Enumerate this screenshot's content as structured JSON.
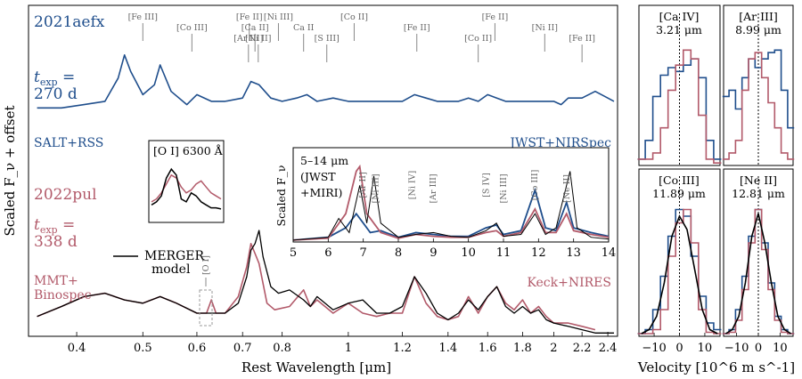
{
  "chart_data": [
    {
      "type": "line",
      "panel": "main-spectrum",
      "xlabel": "Rest Wavelength [μm]",
      "ylabel": "Scaled F_ν + offset",
      "xscale": "log",
      "xlim": [
        0.34,
        2.48
      ],
      "ylim": [
        0,
        1
      ],
      "xticks": [
        0.4,
        0.5,
        0.6,
        0.7,
        0.8,
        1.0,
        1.2,
        1.4,
        1.6,
        1.8,
        2.0,
        2.2,
        2.4
      ],
      "xtick_labels": [
        "0.4",
        "0.5",
        "0.6",
        "0.7",
        "0.8",
        "1",
        "1.2",
        "1.4",
        "1.6",
        "1.8",
        "2",
        "2.2",
        "2.4"
      ],
      "series": [
        {
          "name": "2021aefx",
          "color": "#1f4e8c",
          "x": [
            0.35,
            0.38,
            0.41,
            0.44,
            0.46,
            0.47,
            0.48,
            0.5,
            0.52,
            0.53,
            0.55,
            0.58,
            0.6,
            0.63,
            0.66,
            0.7,
            0.72,
            0.74,
            0.77,
            0.8,
            0.84,
            0.87,
            0.9,
            0.95,
            1.0,
            1.05,
            1.1,
            1.2,
            1.25,
            1.3,
            1.35,
            1.45,
            1.5,
            1.55,
            1.6,
            1.65,
            1.7,
            1.8,
            1.85,
            1.95,
            2.0,
            2.05,
            2.1,
            2.2,
            2.3,
            2.4,
            2.45
          ],
          "y": [
            0.69,
            0.69,
            0.7,
            0.71,
            0.78,
            0.85,
            0.8,
            0.73,
            0.76,
            0.82,
            0.74,
            0.7,
            0.73,
            0.71,
            0.71,
            0.72,
            0.77,
            0.76,
            0.72,
            0.71,
            0.72,
            0.73,
            0.71,
            0.72,
            0.71,
            0.71,
            0.71,
            0.71,
            0.73,
            0.72,
            0.71,
            0.71,
            0.72,
            0.71,
            0.73,
            0.72,
            0.71,
            0.71,
            0.71,
            0.71,
            0.71,
            0.7,
            0.72,
            0.72,
            0.74,
            0.72,
            0.71
          ]
        },
        {
          "name": "2022pul",
          "color": "#b25a6a",
          "x": [
            0.35,
            0.38,
            0.41,
            0.44,
            0.47,
            0.5,
            0.53,
            0.56,
            0.6,
            0.62,
            0.63,
            0.64,
            0.66,
            0.69,
            0.71,
            0.72,
            0.73,
            0.74,
            0.76,
            0.78,
            0.82,
            0.86,
            0.88,
            0.9,
            0.95,
            1.0,
            1.05,
            1.1,
            1.15,
            1.2,
            1.25,
            1.3,
            1.35,
            1.4,
            1.45,
            1.5,
            1.55,
            1.6,
            1.65,
            1.7,
            1.75,
            1.8,
            1.85,
            1.9,
            1.95,
            2.0,
            2.1,
            2.2,
            2.3
          ],
          "y": [
            0.06,
            0.09,
            0.12,
            0.13,
            0.11,
            0.1,
            0.12,
            0.1,
            0.07,
            0.07,
            0.11,
            0.07,
            0.07,
            0.12,
            0.21,
            0.28,
            0.25,
            0.22,
            0.1,
            0.08,
            0.09,
            0.14,
            0.09,
            0.11,
            0.07,
            0.1,
            0.07,
            0.06,
            0.07,
            0.07,
            0.18,
            0.1,
            0.06,
            0.05,
            0.06,
            0.12,
            0.07,
            0.12,
            0.15,
            0.1,
            0.08,
            0.11,
            0.07,
            0.09,
            0.06,
            0.04,
            0.04,
            0.03,
            0.02
          ]
        },
        {
          "name": "MERGER model",
          "color": "#000000",
          "x": [
            0.35,
            0.38,
            0.41,
            0.44,
            0.47,
            0.5,
            0.53,
            0.56,
            0.6,
            0.63,
            0.66,
            0.69,
            0.71,
            0.72,
            0.73,
            0.74,
            0.75,
            0.77,
            0.79,
            0.82,
            0.86,
            0.88,
            0.9,
            0.95,
            1.0,
            1.05,
            1.1,
            1.15,
            1.2,
            1.25,
            1.3,
            1.35,
            1.4,
            1.45,
            1.5,
            1.55,
            1.6,
            1.65,
            1.7,
            1.75,
            1.8,
            1.85,
            1.9,
            1.95,
            2.0,
            2.1,
            2.2,
            2.3,
            2.45
          ],
          "y": [
            0.06,
            0.09,
            0.12,
            0.13,
            0.11,
            0.1,
            0.12,
            0.1,
            0.07,
            0.07,
            0.07,
            0.1,
            0.18,
            0.26,
            0.28,
            0.32,
            0.24,
            0.15,
            0.13,
            0.14,
            0.11,
            0.09,
            0.12,
            0.08,
            0.1,
            0.11,
            0.07,
            0.07,
            0.09,
            0.18,
            0.13,
            0.07,
            0.05,
            0.07,
            0.11,
            0.08,
            0.12,
            0.15,
            0.09,
            0.07,
            0.09,
            0.07,
            0.08,
            0.05,
            0.04,
            0.03,
            0.02,
            0.01,
            0.01
          ]
        }
      ],
      "annotations": {
        "sn1_name": "2021aefx",
        "sn1_texp_a": "t",
        "sn1_texp_sub": "exp",
        "sn1_texp_b": " =",
        "sn1_texp_val": "270 d",
        "sn1_inst_left": "SALT+RSS",
        "sn1_inst_right": "JWST+NIRSpec",
        "sn2_name": "2022pul",
        "sn2_texp_a": "t",
        "sn2_texp_sub": "exp",
        "sn2_texp_b": " =",
        "sn2_texp_val": "338 d",
        "sn2_inst_left_1": "MMT+",
        "sn2_inst_left_2": "Binospec",
        "sn2_inst_right": "Keck+NIRES",
        "legend_label_1": "MERGER",
        "legend_label_2": "model",
        "oi_marker": "[O I]",
        "line_ids": [
          {
            "label": "[Fe III]",
            "x": 0.5
          },
          {
            "label": "[Co III]",
            "x": 0.59
          },
          {
            "label": "[Ar III]",
            "x": 0.714
          },
          {
            "label": "[Fe II]",
            "x": 0.716
          },
          {
            "label": "[Ca II]",
            "x": 0.73
          },
          {
            "label": "[Ni II]",
            "x": 0.738
          },
          {
            "label": "[Ni III]",
            "x": 0.79
          },
          {
            "label": "Ca II",
            "x": 0.86
          },
          {
            "label": "[S III]",
            "x": 0.93
          },
          {
            "label": "[Co II]",
            "x": 1.02
          },
          {
            "label": "[Fe II]",
            "x": 1.26
          },
          {
            "label": "[Co II]",
            "x": 1.55
          },
          {
            "label": "[Fe II]",
            "x": 1.64
          },
          {
            "label": "[Ni II]",
            "x": 1.94
          },
          {
            "label": "[Fe II]",
            "x": 2.2
          }
        ]
      }
    },
    {
      "type": "line",
      "panel": "inset-O-I",
      "title": "[O I] 6300 Å",
      "series": [
        {
          "name": "2022pul",
          "color": "#b25a6a",
          "y": [
            0.3,
            0.35,
            0.45,
            0.6,
            0.75,
            0.7,
            0.55,
            0.45,
            0.5,
            0.6,
            0.65,
            0.55,
            0.45,
            0.4,
            0.35
          ]
        },
        {
          "name": "MERGER model",
          "color": "#000000",
          "y": [
            0.25,
            0.3,
            0.4,
            0.7,
            0.85,
            0.75,
            0.35,
            0.3,
            0.45,
            0.4,
            0.3,
            0.25,
            0.2,
            0.2,
            0.18
          ]
        }
      ]
    },
    {
      "type": "line",
      "panel": "inset-MIR",
      "title_1": "5–14 μm",
      "title_2": "(JWST",
      "title_3": "+MIRI)",
      "ylabel": "Scaled F_ν",
      "xlim": [
        5,
        14
      ],
      "xticks": [
        5,
        6,
        7,
        8,
        9,
        10,
        11,
        12,
        13,
        14
      ],
      "xtick_labels": [
        "5",
        "6",
        "7",
        "8",
        "9",
        "10",
        "11",
        "12",
        "13",
        "14"
      ],
      "series": [
        {
          "name": "2021aefx",
          "color": "#1f4e8c",
          "x": [
            5,
            6,
            6.5,
            6.8,
            7,
            7.2,
            7.5,
            8,
            8.5,
            9,
            9.5,
            10,
            10.5,
            10.8,
            11,
            11.5,
            11.9,
            12.2,
            12.5,
            12.8,
            13,
            13.5,
            14
          ],
          "y": [
            0.02,
            0.05,
            0.15,
            0.3,
            0.2,
            0.1,
            0.12,
            0.05,
            0.1,
            0.08,
            0.06,
            0.06,
            0.15,
            0.18,
            0.08,
            0.12,
            0.55,
            0.15,
            0.12,
            0.42,
            0.15,
            0.1,
            0.06
          ]
        },
        {
          "name": "2022pul",
          "color": "#b25a6a",
          "x": [
            5,
            6,
            6.5,
            6.8,
            6.9,
            7.1,
            7.5,
            8,
            8.5,
            9,
            9.5,
            10,
            10.5,
            10.8,
            11,
            11.5,
            11.9,
            12.2,
            12.5,
            12.8,
            13,
            13.5,
            14
          ],
          "y": [
            0.02,
            0.04,
            0.3,
            0.75,
            0.8,
            0.3,
            0.1,
            0.04,
            0.08,
            0.06,
            0.05,
            0.05,
            0.1,
            0.12,
            0.06,
            0.1,
            0.35,
            0.1,
            0.1,
            0.3,
            0.12,
            0.08,
            0.05
          ]
        },
        {
          "name": "MERGER model",
          "color": "#000000",
          "x": [
            5,
            6,
            6.3,
            6.6,
            6.9,
            7.1,
            7.3,
            7.5,
            8,
            8.5,
            9,
            9.5,
            10,
            10.5,
            10.8,
            11,
            11.5,
            11.9,
            12.2,
            12.5,
            12.9,
            13.1,
            13.5,
            14
          ],
          "y": [
            0.02,
            0.05,
            0.25,
            0.1,
            0.6,
            0.2,
            0.7,
            0.2,
            0.05,
            0.08,
            0.1,
            0.06,
            0.05,
            0.12,
            0.2,
            0.06,
            0.08,
            0.3,
            0.08,
            0.15,
            0.75,
            0.15,
            0.05,
            0.03
          ]
        }
      ],
      "line_ids": [
        {
          "label": "[Ar II]",
          "x": 6.98
        },
        {
          "label": "[Ni III]",
          "x": 7.35
        },
        {
          "label": "[Ni IV]",
          "x": 8.4
        },
        {
          "label": "[Ar III]",
          "x": 8.99
        },
        {
          "label": "[S IV]",
          "x": 10.5
        },
        {
          "label": "[Ni III]",
          "x": 11.0
        },
        {
          "label": "[Co III]",
          "x": 11.89
        },
        {
          "label": "[Ne II]",
          "x": 12.81
        }
      ]
    },
    {
      "type": "line",
      "panel": "velocity-Ca-IV",
      "title_1": "[Ca IV]",
      "title_2": "3.21 μm",
      "series": [
        {
          "name": "2021aefx",
          "color": "#1f4e8c",
          "x": [
            -15,
            -12,
            -9,
            -6,
            -3,
            0,
            3,
            6,
            9,
            12,
            15
          ],
          "y": [
            0.05,
            0.2,
            0.55,
            0.72,
            0.78,
            0.75,
            0.8,
            0.85,
            0.7,
            0.2,
            0.05
          ]
        },
        {
          "name": "2022pul",
          "color": "#b25a6a",
          "x": [
            -15,
            -12,
            -9,
            -6,
            -3,
            0,
            3,
            6,
            9,
            12,
            15
          ],
          "y": [
            0.05,
            0.05,
            0.1,
            0.3,
            0.6,
            0.8,
            0.92,
            0.85,
            0.4,
            0.05,
            0.02
          ]
        }
      ]
    },
    {
      "type": "line",
      "panel": "velocity-Ar-III",
      "title_1": "[Ar III]",
      "title_2": "8.99 μm",
      "series": [
        {
          "name": "2021aefx",
          "color": "#1f4e8c",
          "x": [
            -15,
            -12,
            -9,
            -6,
            -3,
            0,
            3,
            6,
            9,
            12,
            15
          ],
          "y": [
            0.55,
            0.6,
            0.45,
            0.7,
            0.85,
            0.78,
            0.85,
            0.9,
            0.92,
            0.6,
            0.3
          ]
        },
        {
          "name": "2022pul",
          "color": "#b25a6a",
          "x": [
            -15,
            -12,
            -9,
            -6,
            -3,
            0,
            3,
            6,
            9,
            12,
            15
          ],
          "y": [
            0.05,
            0.1,
            0.2,
            0.6,
            0.85,
            0.9,
            0.7,
            0.5,
            0.3,
            0.1,
            0.05
          ]
        }
      ]
    },
    {
      "type": "line",
      "panel": "velocity-Co-III",
      "title_1": "[Co III]",
      "title_2": "11.89 μm",
      "xlabel": "",
      "xticks": [
        -10,
        0,
        10
      ],
      "xtick_labels": [
        "−10",
        "0",
        "10"
      ],
      "series": [
        {
          "name": "2021aefx",
          "color": "#1f4e8c",
          "x": [
            -15,
            -12,
            -9,
            -6,
            -3,
            0,
            3,
            6,
            9,
            12,
            15
          ],
          "y": [
            0.02,
            0.05,
            0.2,
            0.45,
            0.75,
            0.95,
            0.9,
            0.6,
            0.3,
            0.1,
            0.05
          ]
        },
        {
          "name": "2022pul",
          "color": "#b25a6a",
          "x": [
            -15,
            -12,
            -9,
            -6,
            -3,
            0,
            3,
            6,
            9,
            12,
            15
          ],
          "y": [
            0.02,
            0.02,
            0.05,
            0.2,
            0.6,
            0.85,
            0.95,
            0.7,
            0.2,
            0.03,
            0.02
          ]
        },
        {
          "name": "MERGER model",
          "color": "#000000",
          "x": [
            -15,
            -12,
            -9,
            -6,
            -3,
            0,
            3,
            6,
            9,
            12,
            15
          ],
          "y": [
            0.02,
            0.05,
            0.15,
            0.4,
            0.75,
            0.9,
            0.8,
            0.5,
            0.2,
            0.05,
            0.02
          ]
        }
      ]
    },
    {
      "type": "line",
      "panel": "velocity-Ne-II",
      "title_1": "[Ne II]",
      "title_2": "12.81 μm",
      "xticks": [
        -10,
        0,
        10
      ],
      "xtick_labels": [
        "−10",
        "0",
        "10"
      ],
      "series": [
        {
          "name": "2021aefx",
          "color": "#1f4e8c",
          "x": [
            -15,
            -12,
            -9,
            -6,
            -3,
            0,
            3,
            6,
            9,
            12,
            15
          ],
          "y": [
            0.02,
            0.05,
            0.2,
            0.45,
            0.75,
            0.95,
            0.7,
            0.4,
            0.15,
            0.05,
            0.02
          ]
        },
        {
          "name": "2022pul",
          "color": "#b25a6a",
          "x": [
            -15,
            -12,
            -9,
            -6,
            -3,
            0,
            3,
            6,
            9,
            12,
            15
          ],
          "y": [
            0.02,
            0.03,
            0.12,
            0.35,
            0.7,
            0.95,
            0.65,
            0.35,
            0.12,
            0.03,
            0.02
          ]
        },
        {
          "name": "MERGER model",
          "color": "#000000",
          "x": [
            -15,
            -12,
            -9,
            -6,
            -3,
            0,
            3,
            6,
            9,
            12,
            15
          ],
          "y": [
            0.02,
            0.05,
            0.15,
            0.4,
            0.75,
            0.92,
            0.7,
            0.4,
            0.15,
            0.05,
            0.02
          ]
        }
      ]
    }
  ],
  "velocity_xlabel": "Velocity [10^6 m s^-1]"
}
